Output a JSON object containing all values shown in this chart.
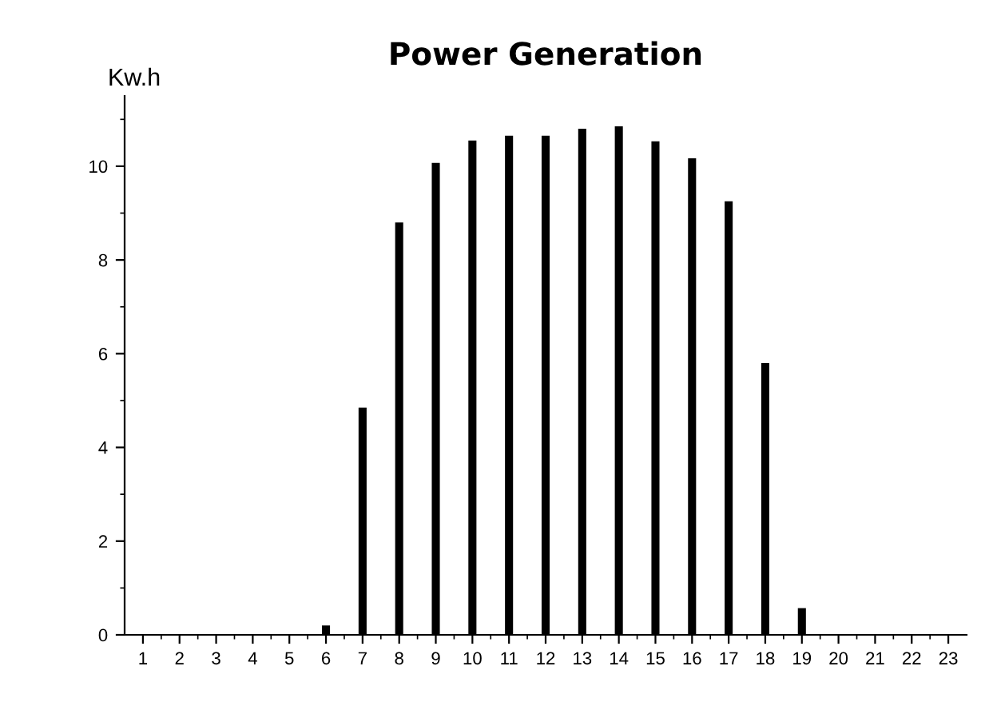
{
  "chart_data": {
    "type": "bar",
    "title": "Power Generation",
    "ylabel": "Kw.h",
    "x": [
      1,
      2,
      3,
      4,
      5,
      6,
      7,
      8,
      9,
      10,
      11,
      12,
      13,
      14,
      15,
      16,
      17,
      18,
      19,
      20,
      21,
      22,
      23
    ],
    "values": [
      0,
      0,
      0,
      0,
      0,
      0.2,
      4.85,
      8.8,
      10.07,
      10.55,
      10.65,
      10.65,
      10.8,
      10.85,
      10.53,
      10.17,
      9.25,
      5.8,
      0.57,
      0,
      0,
      0,
      0
    ],
    "color": "#000000",
    "xlim": [
      0.5,
      23.5
    ],
    "xticks": [
      1,
      2,
      3,
      4,
      5,
      6,
      7,
      8,
      9,
      10,
      11,
      12,
      13,
      14,
      15,
      16,
      17,
      18,
      19,
      20,
      21,
      22,
      23
    ],
    "ylim": [
      0,
      11.5
    ],
    "yticks": [
      0,
      2,
      4,
      6,
      8,
      10
    ],
    "grid": false
  }
}
